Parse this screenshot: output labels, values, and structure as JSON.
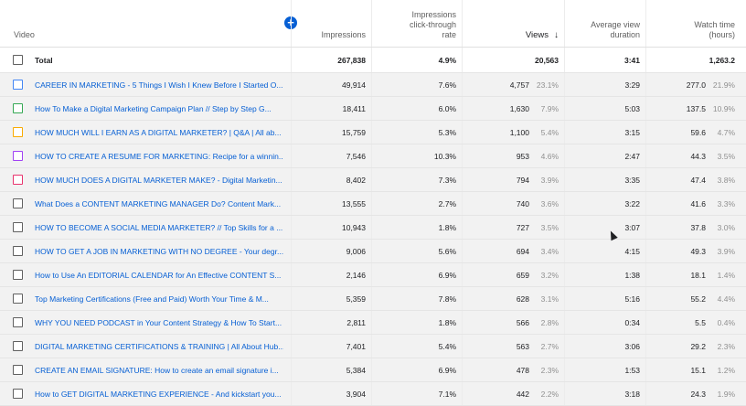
{
  "header": {
    "video": "Video",
    "impressions": "Impressions",
    "ctr_line1": "Impressions",
    "ctr_line2": "click-through",
    "ctr_line3": "rate",
    "views": "Views",
    "avd_line1": "Average view",
    "avd_line2": "duration",
    "watch_line1": "Watch time",
    "watch_line2": "(hours)",
    "sort_icon": "↓",
    "add_icon": "+"
  },
  "total": {
    "label": "Total",
    "impressions": "267,838",
    "ctr": "4.9%",
    "views": "20,563",
    "avd": "3:41",
    "watch": "1,263.2"
  },
  "rows": [
    {
      "title": "CAREER IN MARKETING - 5 Things I Wish I Knew Before I Started O...",
      "color": "#4285f4",
      "impressions": "49,914",
      "ctr": "7.6%",
      "views": "4,757",
      "views_pct": "23.1%",
      "avd": "3:29",
      "watch": "277.0",
      "watch_pct": "21.9%"
    },
    {
      "title": "How To Make a Digital Marketing Campaign Plan // Step by Step G...",
      "color": "#34a853",
      "impressions": "18,411",
      "ctr": "6.0%",
      "views": "1,630",
      "views_pct": "7.9%",
      "avd": "5:03",
      "watch": "137.5",
      "watch_pct": "10.9%"
    },
    {
      "title": "HOW MUCH WILL I EARN AS A DIGITAL MARKETER? | Q&A | All ab...",
      "color": "#f9ab00",
      "impressions": "15,759",
      "ctr": "5.3%",
      "views": "1,100",
      "views_pct": "5.4%",
      "avd": "3:15",
      "watch": "59.6",
      "watch_pct": "4.7%"
    },
    {
      "title": "HOW TO CREATE A RESUME FOR MARKETING: Recipe for a winnin...",
      "color": "#a142f4",
      "impressions": "7,546",
      "ctr": "10.3%",
      "views": "953",
      "views_pct": "4.6%",
      "avd": "2:47",
      "watch": "44.3",
      "watch_pct": "3.5%"
    },
    {
      "title": "HOW MUCH DOES A DIGITAL MARKETER MAKE? - Digital Marketin...",
      "color": "#e8336d",
      "impressions": "8,402",
      "ctr": "7.3%",
      "views": "794",
      "views_pct": "3.9%",
      "avd": "3:35",
      "watch": "47.4",
      "watch_pct": "3.8%"
    },
    {
      "title": "What Does a CONTENT MARKETING MANAGER Do? Content Mark...",
      "color": "#606060",
      "impressions": "13,555",
      "ctr": "2.7%",
      "views": "740",
      "views_pct": "3.6%",
      "avd": "3:22",
      "watch": "41.6",
      "watch_pct": "3.3%"
    },
    {
      "title": "HOW TO BECOME A SOCIAL MEDIA MARKETER? // Top Skills for a ...",
      "color": "#606060",
      "impressions": "10,943",
      "ctr": "1.8%",
      "views": "727",
      "views_pct": "3.5%",
      "avd": "3:07",
      "watch": "37.8",
      "watch_pct": "3.0%"
    },
    {
      "title": "HOW TO GET A JOB IN MARKETING WITH NO DEGREE - Your degr...",
      "color": "#606060",
      "impressions": "9,006",
      "ctr": "5.6%",
      "views": "694",
      "views_pct": "3.4%",
      "avd": "4:15",
      "watch": "49.3",
      "watch_pct": "3.9%"
    },
    {
      "title": "How to Use An EDITORIAL CALENDAR for An Effective CONTENT S...",
      "color": "#606060",
      "impressions": "2,146",
      "ctr": "6.9%",
      "views": "659",
      "views_pct": "3.2%",
      "avd": "1:38",
      "watch": "18.1",
      "watch_pct": "1.4%"
    },
    {
      "title": "Top Marketing Certifications (Free and Paid) Worth Your Time & M...",
      "color": "#606060",
      "impressions": "5,359",
      "ctr": "7.8%",
      "views": "628",
      "views_pct": "3.1%",
      "avd": "5:16",
      "watch": "55.2",
      "watch_pct": "4.4%"
    },
    {
      "title": "WHY YOU NEED PODCAST in Your Content Strategy & How To Start...",
      "color": "#606060",
      "impressions": "2,811",
      "ctr": "1.8%",
      "views": "566",
      "views_pct": "2.8%",
      "avd": "0:34",
      "watch": "5.5",
      "watch_pct": "0.4%"
    },
    {
      "title": "DIGITAL MARKETING CERTIFICATIONS & TRAINING | All About Hub...",
      "color": "#606060",
      "impressions": "7,401",
      "ctr": "5.4%",
      "views": "563",
      "views_pct": "2.7%",
      "avd": "3:06",
      "watch": "29.2",
      "watch_pct": "2.3%"
    },
    {
      "title": "CREATE AN EMAIL SIGNATURE: How to create an email signature i...",
      "color": "#606060",
      "impressions": "5,384",
      "ctr": "6.9%",
      "views": "478",
      "views_pct": "2.3%",
      "avd": "1:53",
      "watch": "15.1",
      "watch_pct": "1.2%"
    },
    {
      "title": "How to GET DIGITAL MARKETING EXPERIENCE - And kickstart you...",
      "color": "#606060",
      "impressions": "3,904",
      "ctr": "7.1%",
      "views": "442",
      "views_pct": "2.2%",
      "avd": "3:18",
      "watch": "24.3",
      "watch_pct": "1.9%"
    }
  ]
}
